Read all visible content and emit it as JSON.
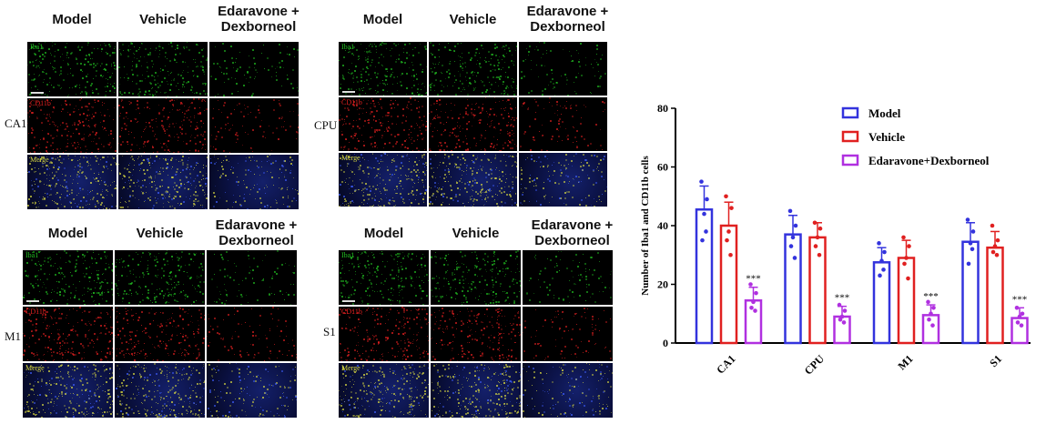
{
  "panels": [
    {
      "region": "CA1",
      "columns": [
        "Model",
        "Vehicle",
        "Edaravone +\nDexborneol"
      ],
      "rows": [
        "Iba1",
        "CD11b",
        "Merge"
      ]
    },
    {
      "region": "CPU",
      "columns": [
        "Model",
        "Vehicle",
        "Edaravone +\nDexborneol"
      ],
      "rows": [
        "Iba1",
        "CD11b",
        "Merge"
      ]
    },
    {
      "region": "M1",
      "columns": [
        "Model",
        "Vehicle",
        "Edaravone +\nDexborneol"
      ],
      "rows": [
        "Iba1",
        "CD11b",
        "Merge"
      ]
    },
    {
      "region": "S1",
      "columns": [
        "Model",
        "Vehicle",
        "Edaravone +\nDexborneol"
      ],
      "rows": [
        "Iba1",
        "CD11b",
        "Merge"
      ]
    }
  ],
  "colors": {
    "model": "#3333dd",
    "vehicle": "#e02020",
    "treatment": "#b030e0",
    "iba1": "#22c022",
    "cd11b": "#e02020",
    "merge": "#d8d840"
  },
  "chart_data": {
    "type": "bar",
    "categories": [
      "CA1",
      "CPU",
      "M1",
      "S1"
    ],
    "ylabel": "Number of Iba1 and CD11b cells",
    "xlabel": "",
    "ylim": [
      0,
      80
    ],
    "yticks": [
      0,
      20,
      40,
      60,
      80
    ],
    "legend_position": "top-right",
    "series": [
      {
        "name": "Model",
        "values": [
          45.5,
          37,
          27.5,
          34.5
        ],
        "errors": [
          8,
          6.5,
          5,
          6.5
        ],
        "points": [
          [
            55,
            49,
            44,
            35,
            38
          ],
          [
            45,
            40,
            36,
            33,
            29
          ],
          [
            34,
            31,
            28,
            23,
            25
          ],
          [
            42,
            38,
            34,
            27,
            32
          ]
        ]
      },
      {
        "name": "Vehicle",
        "values": [
          40,
          36,
          29,
          32.5
        ],
        "errors": [
          8,
          5,
          6,
          5.5
        ],
        "points": [
          [
            50,
            46,
            38,
            35,
            30
          ],
          [
            41,
            39,
            36,
            33,
            30
          ],
          [
            36,
            33,
            29,
            27,
            22
          ],
          [
            40,
            35,
            33,
            31,
            30
          ]
        ]
      },
      {
        "name": "Edaravone+Dexborneol",
        "values": [
          14.5,
          9,
          9.5,
          8.5
        ],
        "errors": [
          4.5,
          3.5,
          3.5,
          3.5
        ],
        "points": [
          [
            20,
            17,
            14,
            12,
            11
          ],
          [
            13,
            11,
            9,
            8,
            7
          ],
          [
            14,
            12,
            10,
            8,
            6
          ],
          [
            12,
            10,
            9,
            7,
            6
          ]
        ]
      }
    ],
    "annotations": [
      "***",
      "***",
      "***",
      "***"
    ]
  }
}
